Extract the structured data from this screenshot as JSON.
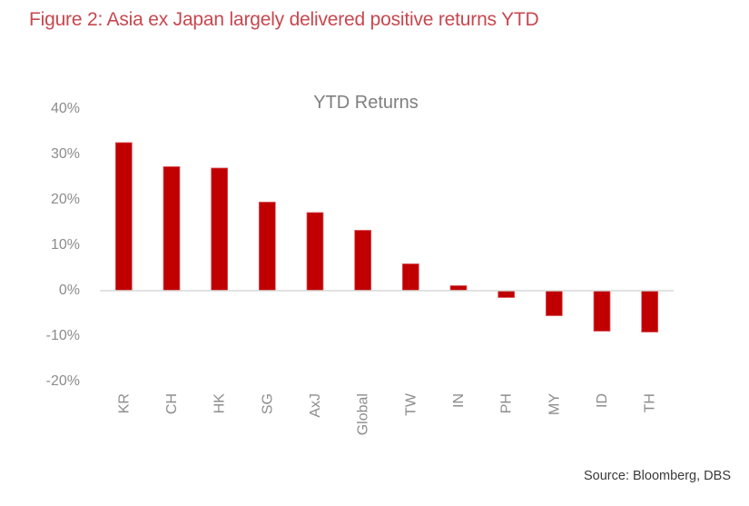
{
  "figure": {
    "title": "Figure 2: Asia ex Japan largely delivered positive returns YTD",
    "source": "Source: Bloomberg, DBS"
  },
  "colors": {
    "figure_title": "#c8474f",
    "bar": "#c00000",
    "axis_text": "#8c8c8c",
    "zero_line": "#d9d9d9"
  },
  "chart_data": {
    "type": "bar",
    "title": "YTD Returns",
    "xlabel": "",
    "ylabel": "",
    "categories": [
      "KR",
      "CH",
      "HK",
      "SG",
      "AxJ",
      "Global",
      "TW",
      "IN",
      "PH",
      "MY",
      "ID",
      "TH"
    ],
    "values": [
      32.6,
      27.3,
      27.0,
      19.5,
      17.2,
      13.3,
      5.9,
      1.1,
      -1.5,
      -5.5,
      -8.9,
      -9.1
    ],
    "unit": "%",
    "ylim": [
      -20,
      40
    ],
    "yticks": [
      40,
      30,
      20,
      10,
      0,
      -10,
      -20
    ],
    "ytick_labels": [
      "40%",
      "30%",
      "20%",
      "10%",
      "0%",
      "-10%",
      "-20%"
    ],
    "grid": false,
    "legend": "none",
    "x_label_rotation": "vertical"
  }
}
